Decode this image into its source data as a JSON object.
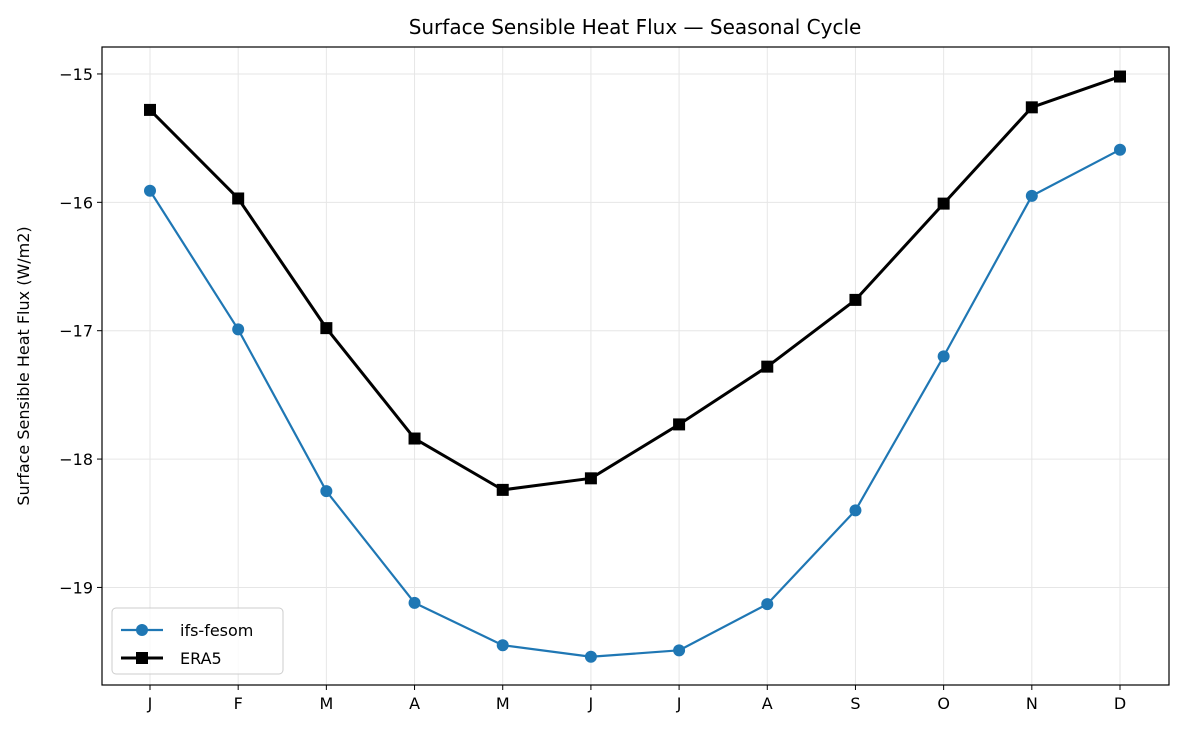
{
  "chart_data": {
    "type": "line",
    "title": "Surface Sensible Heat Flux — Seasonal Cycle",
    "xlabel": "",
    "ylabel": "Surface Sensible Heat Flux (W/m2)",
    "categories": [
      "J",
      "F",
      "M",
      "A",
      "M",
      "J",
      "J",
      "A",
      "S",
      "O",
      "N",
      "D"
    ],
    "yticks": [
      -15,
      -16,
      -17,
      -18,
      -19
    ],
    "ytick_labels": [
      "−15",
      "−16",
      "−17",
      "−18",
      "−19"
    ],
    "ylim": [
      -19.76,
      -14.79
    ],
    "grid": true,
    "legend": "lower-left",
    "series": [
      {
        "name": "ifs-fesom",
        "color": "#1f77b4",
        "marker": "circle",
        "values": [
          -15.91,
          -16.99,
          -18.25,
          -19.12,
          -19.45,
          -19.54,
          -19.49,
          -19.13,
          -18.4,
          -17.2,
          -15.95,
          -15.59
        ]
      },
      {
        "name": "ERA5",
        "color": "#000000",
        "marker": "square",
        "values": [
          -15.28,
          -15.97,
          -16.98,
          -17.84,
          -18.24,
          -18.15,
          -17.73,
          -17.28,
          -16.76,
          -16.01,
          -15.26,
          -15.02
        ]
      }
    ]
  }
}
